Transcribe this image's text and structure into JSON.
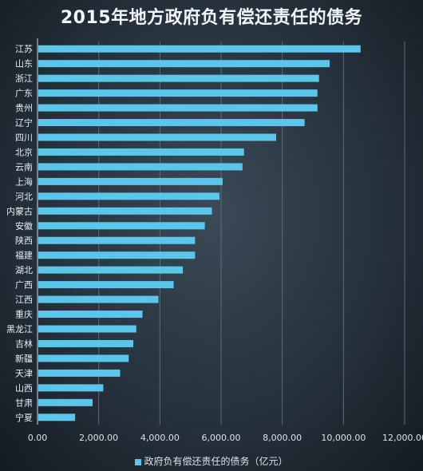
{
  "chart_data": {
    "type": "bar",
    "orientation": "horizontal",
    "title": "2015年地方政府负有偿还责任的债务",
    "categories": [
      "江苏",
      "山东",
      "浙江",
      "广东",
      "贵州",
      "辽宁",
      "四川",
      "北京",
      "云南",
      "上海",
      "河北",
      "内蒙古",
      "安徽",
      "陕西",
      "福建",
      "湖北",
      "广西",
      "江西",
      "重庆",
      "黑龙江",
      "吉林",
      "新疆",
      "天津",
      "山西",
      "甘肃",
      "宁夏"
    ],
    "series": [
      {
        "name": "政府负有偿还责任的债务（亿元）",
        "color": "#5cc6ea",
        "values": [
          10560,
          9550,
          9200,
          9150,
          9150,
          8730,
          7800,
          6750,
          6700,
          6050,
          5950,
          5700,
          5470,
          5150,
          5150,
          4750,
          4450,
          3950,
          3430,
          3230,
          3130,
          2980,
          2700,
          2150,
          1800,
          1230
        ]
      }
    ],
    "x_ticks": [
      "0.00",
      "2,000.00",
      "4,000.00",
      "6,000.00",
      "8,000.00",
      "10,000.00",
      "12,000.00"
    ],
    "xlim": [
      0,
      12000
    ],
    "grid": true,
    "legend_position": "bottom"
  }
}
